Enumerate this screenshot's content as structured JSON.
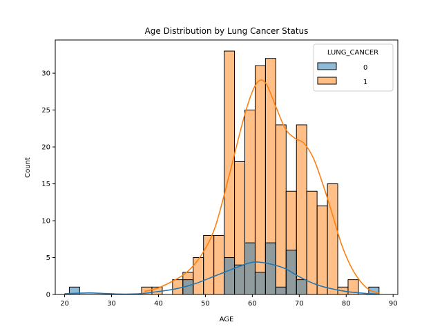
{
  "chart_data": {
    "type": "bar",
    "title": "Age Distribution by Lung Cancer Status",
    "xlabel": "AGE",
    "ylabel": "Count",
    "xlim": [
      18,
      91
    ],
    "ylim": [
      0,
      34.5
    ],
    "xticks": [
      20,
      30,
      40,
      50,
      60,
      70,
      80,
      90
    ],
    "yticks": [
      0,
      5,
      10,
      15,
      20,
      25,
      30
    ],
    "grid": false,
    "legend": {
      "title": "LUNG_CANCER",
      "placement": "top-right",
      "entries": [
        "0",
        "1"
      ]
    },
    "bin_edges": [
      21,
      23.2,
      25.4,
      27.6,
      29.8,
      32,
      34.2,
      36.4,
      38.6,
      40.8,
      43,
      45.2,
      47.4,
      49.6,
      51.8,
      54,
      56.2,
      58.4,
      60.6,
      62.8,
      65,
      67.2,
      69.4,
      71.6,
      73.8,
      76,
      78.2,
      80.4,
      82.6,
      84.8,
      87
    ],
    "series": [
      {
        "name": "0",
        "color": "#1f77b4",
        "values": [
          1,
          0,
          0,
          0,
          0,
          0,
          0,
          0,
          0,
          0,
          0,
          2,
          0,
          0,
          0,
          5,
          4,
          7,
          3,
          7,
          1,
          6,
          2,
          0,
          0,
          0,
          0,
          0,
          0,
          1
        ],
        "kde": [
          [
            20,
            0.1
          ],
          [
            25,
            0.2
          ],
          [
            28,
            0.15
          ],
          [
            32,
            0.05
          ],
          [
            36,
            0.1
          ],
          [
            40,
            0.4
          ],
          [
            44,
            0.8
          ],
          [
            48,
            1.5
          ],
          [
            52,
            2.5
          ],
          [
            56,
            3.5
          ],
          [
            59,
            4.2
          ],
          [
            61,
            4.4
          ],
          [
            64,
            4.1
          ],
          [
            67,
            3.5
          ],
          [
            70,
            2.4
          ],
          [
            73,
            1.5
          ],
          [
            76,
            0.9
          ],
          [
            80,
            0.4
          ],
          [
            84,
            0.15
          ],
          [
            87,
            0.05
          ]
        ]
      },
      {
        "name": "1",
        "color": "#ff7f0e",
        "values": [
          0,
          0,
          0,
          0,
          0,
          0,
          0,
          1,
          1,
          0,
          2,
          3,
          5,
          8,
          8,
          33,
          18,
          25,
          31,
          32,
          23,
          14,
          23,
          14,
          12,
          15,
          1,
          2,
          0,
          0
        ],
        "kde": [
          [
            37,
            0.4
          ],
          [
            40,
            0.9
          ],
          [
            43,
            1.8
          ],
          [
            46,
            3
          ],
          [
            49,
            5.2
          ],
          [
            52,
            9
          ],
          [
            55,
            16
          ],
          [
            58,
            23.5
          ],
          [
            60,
            27.5
          ],
          [
            61.5,
            29
          ],
          [
            63,
            28.5
          ],
          [
            65,
            25.5
          ],
          [
            67,
            22.5
          ],
          [
            69,
            21.2
          ],
          [
            71,
            20.5
          ],
          [
            73,
            18.5
          ],
          [
            75,
            15
          ],
          [
            77,
            11
          ],
          [
            79,
            6.8
          ],
          [
            81,
            3.8
          ],
          [
            83,
            1.8
          ],
          [
            85,
            0.6
          ],
          [
            87,
            0.2
          ]
        ]
      }
    ]
  }
}
